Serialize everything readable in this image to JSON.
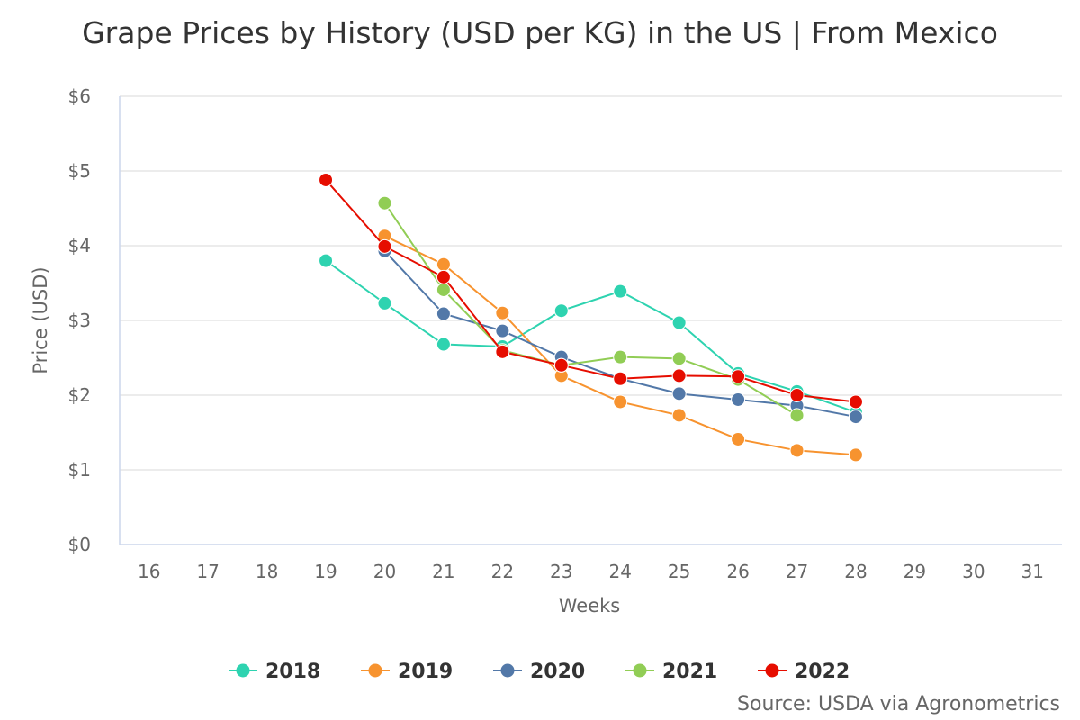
{
  "chart_data": {
    "type": "line",
    "title": "Grape Prices by History (USD per KG) in the US | From Mexico",
    "xlabel": "Weeks",
    "ylabel": "Price (USD)",
    "xlim": [
      15.5,
      31.5
    ],
    "ylim": [
      0,
      6
    ],
    "x_ticks": [
      16,
      17,
      18,
      19,
      20,
      21,
      22,
      23,
      24,
      25,
      26,
      27,
      28,
      29,
      30,
      31
    ],
    "y_ticks": [
      0,
      1,
      2,
      3,
      4,
      5,
      6
    ],
    "y_tick_labels": [
      "$0",
      "$1",
      "$2",
      "$3",
      "$4",
      "$5",
      "$6"
    ],
    "grid": true,
    "legend_position": "bottom-center",
    "series": [
      {
        "name": "2018",
        "color": "#2ed3b0",
        "x": [
          19,
          20,
          21,
          22,
          23,
          24,
          25,
          26,
          27,
          28
        ],
        "values": [
          3.8,
          3.23,
          2.68,
          2.65,
          3.13,
          3.39,
          2.97,
          2.29,
          2.05,
          1.77
        ]
      },
      {
        "name": "2019",
        "color": "#f7932f",
        "x": [
          20,
          21,
          22,
          23,
          24,
          25,
          26,
          27,
          28
        ],
        "values": [
          4.13,
          3.75,
          3.1,
          2.26,
          1.91,
          1.73,
          1.41,
          1.26,
          1.2
        ]
      },
      {
        "name": "2020",
        "color": "#5278a8",
        "x": [
          20,
          21,
          22,
          23,
          24,
          25,
          26,
          27,
          28
        ],
        "values": [
          3.93,
          3.09,
          2.86,
          2.51,
          2.22,
          2.02,
          1.94,
          1.86,
          1.71
        ]
      },
      {
        "name": "2021",
        "color": "#91cd55",
        "x": [
          20,
          21,
          22,
          23,
          24,
          25,
          26,
          27
        ],
        "values": [
          4.57,
          3.41,
          2.6,
          2.4,
          2.51,
          2.49,
          2.21,
          1.73
        ]
      },
      {
        "name": "2022",
        "color": "#e60d00",
        "x": [
          19,
          20,
          21,
          22,
          23,
          24,
          25,
          26,
          27,
          28
        ],
        "values": [
          4.88,
          3.99,
          3.58,
          2.58,
          2.4,
          2.22,
          2.26,
          2.25,
          2.0,
          1.91
        ]
      }
    ]
  },
  "footer": {
    "source": "Source: USDA via Agronometrics"
  }
}
